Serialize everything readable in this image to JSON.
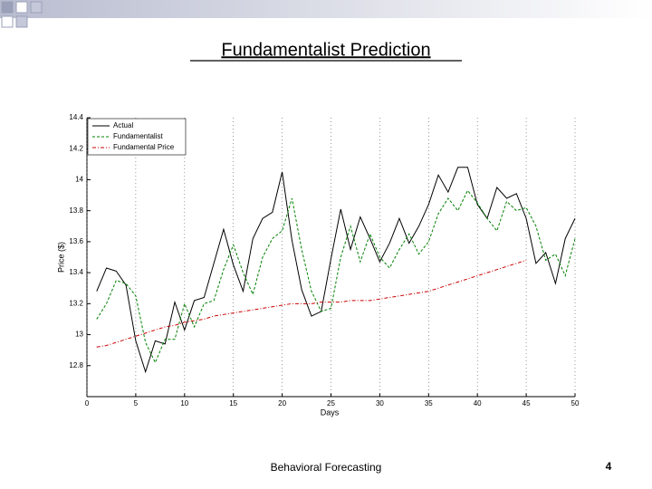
{
  "chart_data": {
    "type": "line",
    "title": "Fundamentalist Prediction",
    "x_label": "Days",
    "y_label": "Price ($)",
    "x": [
      1,
      2,
      3,
      4,
      5,
      6,
      7,
      8,
      9,
      10,
      11,
      12,
      13,
      14,
      15,
      16,
      17,
      18,
      19,
      20,
      21,
      22,
      23,
      24,
      25,
      26,
      27,
      28,
      29,
      30,
      31,
      32,
      33,
      34,
      35,
      36,
      37,
      38,
      39,
      40,
      41,
      42,
      43,
      44,
      45,
      46,
      47,
      48,
      49,
      50
    ],
    "series": [
      {
        "name": "Actual",
        "color": "#000000",
        "dash": "solid",
        "values": [
          13.28,
          13.43,
          13.41,
          13.32,
          12.96,
          12.76,
          12.96,
          12.94,
          13.21,
          13.03,
          13.22,
          13.24,
          13.46,
          13.68,
          13.45,
          13.28,
          13.62,
          13.75,
          13.79,
          14.05,
          13.61,
          13.29,
          13.12,
          13.15,
          13.49,
          13.81,
          13.55,
          13.76,
          13.62,
          13.47,
          13.59,
          13.75,
          13.59,
          13.7,
          13.84,
          14.03,
          13.92,
          14.08,
          14.08,
          13.84,
          13.75,
          13.95,
          13.88,
          13.91,
          13.75,
          13.46,
          13.53,
          13.33,
          13.62,
          13.75
        ]
      },
      {
        "name": "Fundamentalist",
        "color": "#008000",
        "dash": "dashed",
        "values": [
          13.1,
          13.2,
          13.35,
          13.33,
          13.25,
          12.95,
          12.82,
          12.97,
          12.97,
          13.2,
          13.05,
          13.2,
          13.22,
          13.42,
          13.58,
          13.4,
          13.26,
          13.5,
          13.62,
          13.67,
          13.88,
          13.55,
          13.28,
          13.15,
          13.17,
          13.5,
          13.7,
          13.47,
          13.65,
          13.5,
          13.43,
          13.55,
          13.65,
          13.52,
          13.6,
          13.78,
          13.88,
          13.8,
          13.93,
          13.85,
          13.75,
          13.67,
          13.86,
          13.8,
          13.82,
          13.7,
          13.48,
          13.52,
          13.38,
          13.62
        ]
      },
      {
        "name": "Fundamental Price",
        "color": "#cc0000",
        "dash": "dashdot",
        "values": [
          12.92,
          12.93,
          12.95,
          12.97,
          12.99,
          13.01,
          13.03,
          13.05,
          13.06,
          13.08,
          13.09,
          13.1,
          13.12,
          13.13,
          13.14,
          13.15,
          13.16,
          13.17,
          13.18,
          13.19,
          13.2,
          13.2,
          13.2,
          13.21,
          13.21,
          13.21,
          13.22,
          13.22,
          13.22,
          13.23,
          13.24,
          13.25,
          13.26,
          13.27,
          13.28,
          13.3,
          13.32,
          13.34,
          13.36,
          13.38,
          13.4,
          13.42,
          13.44,
          13.46,
          13.48,
          null,
          null,
          null,
          null,
          null
        ]
      }
    ],
    "xlim": [
      0,
      50
    ],
    "xticks": [
      0,
      5,
      10,
      15,
      20,
      25,
      30,
      35,
      40,
      45,
      50
    ],
    "ylim": [
      12.6,
      14.4
    ],
    "yticks": [
      12.8,
      13,
      13.2,
      13.4,
      13.6,
      13.8,
      14,
      14.2,
      14.4
    ],
    "grid": "x",
    "legend": "upper-left"
  },
  "footer": "Behavioral Forecasting",
  "page_number": "4"
}
